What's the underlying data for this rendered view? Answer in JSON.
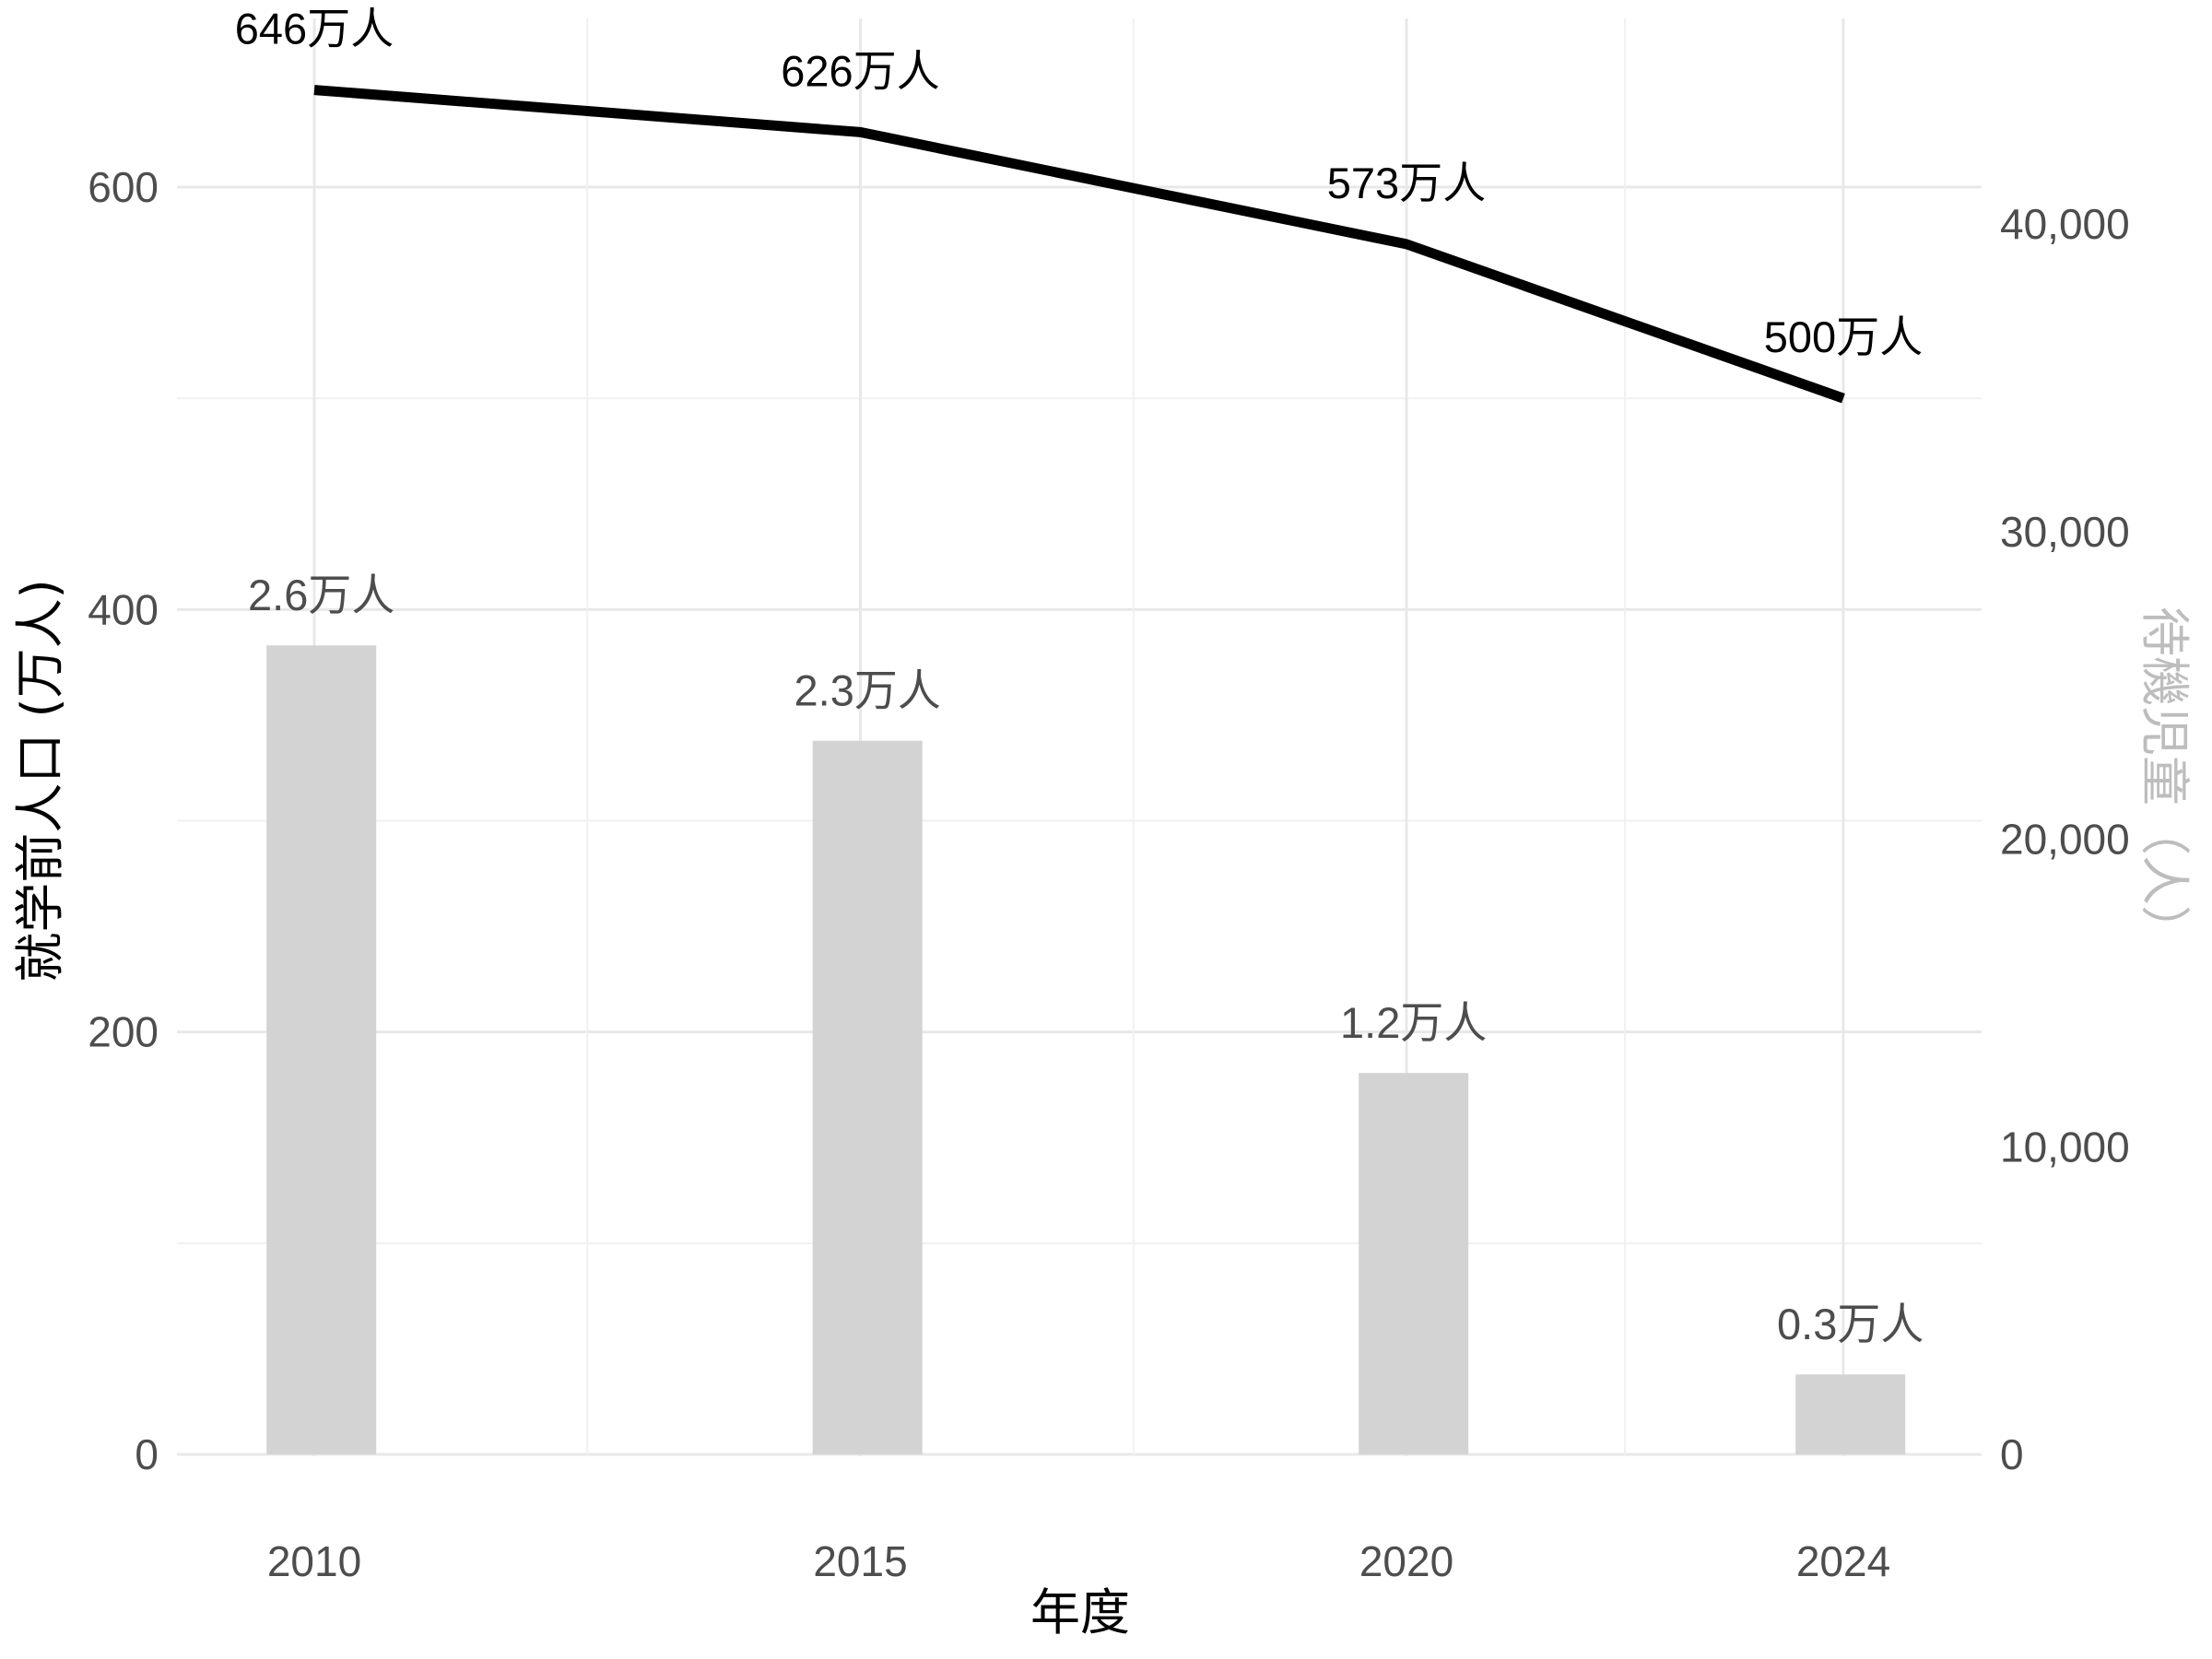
{
  "chart_data": {
    "type": "bar",
    "x": [
      2010,
      2015,
      2020,
      2024
    ],
    "xlabel": "年度",
    "ylabel_left": "就学前人口 (万人)",
    "ylabel_right": "待機児童（人）",
    "ylim_left": [
      0,
      650
    ],
    "ylim_right": [
      0,
      44500
    ],
    "left_ticks": [
      0,
      200,
      400,
      600
    ],
    "right_ticks": [
      0,
      10000,
      20000,
      30000,
      40000
    ],
    "right_tick_labels": [
      "0",
      "10,000",
      "20,000",
      "30,000",
      "40,000"
    ],
    "series": [
      {
        "type": "line",
        "axis": "left",
        "values": [
          646,
          626,
          573,
          500
        ],
        "labels": [
          "646万人",
          "626万人",
          "573万人",
          "500万人"
        ],
        "color": "#000000"
      },
      {
        "type": "bar",
        "axis": "right",
        "values": [
          26300,
          23200,
          12400,
          2600
        ],
        "labels": [
          "2.6万人",
          "2.3万人",
          "1.2万人",
          "0.3万人"
        ],
        "color": "#d3d3d3"
      }
    ],
    "grid": true,
    "legend": "none"
  }
}
